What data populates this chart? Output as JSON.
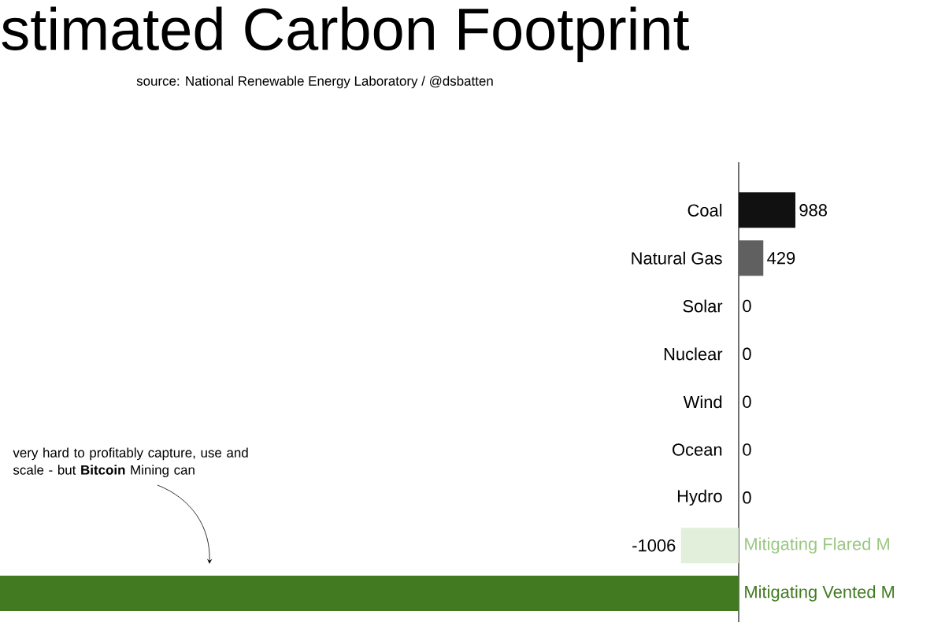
{
  "chart_data": {
    "type": "bar",
    "orientation": "horizontal",
    "title": "stimated Carbon Footprint",
    "subtitle": "source: National Renewable Energy Laboratory / @dsbatten",
    "categories": [
      "Coal",
      "Natural Gas",
      "Solar",
      "Nuclear",
      "Wind",
      "Ocean",
      "Hydro",
      "Mitigating Flared M",
      "Mitigating Vented M"
    ],
    "values": [
      988,
      429,
      0,
      0,
      0,
      0,
      0,
      -1006,
      -12870
    ],
    "colors": [
      "#111111",
      "#606060",
      "#dddddd",
      "#dddddd",
      "#dddddd",
      "#dddddd",
      "#dddddd",
      "#e2efdb",
      "#427a22"
    ],
    "value_labels": [
      "988",
      "429",
      "0",
      "0",
      "0",
      "0",
      "0",
      "-1006",
      null
    ],
    "annotations": [
      "very hard to profitably capture, use and scale - but **Bitcoin** Mining can"
    ]
  }
}
